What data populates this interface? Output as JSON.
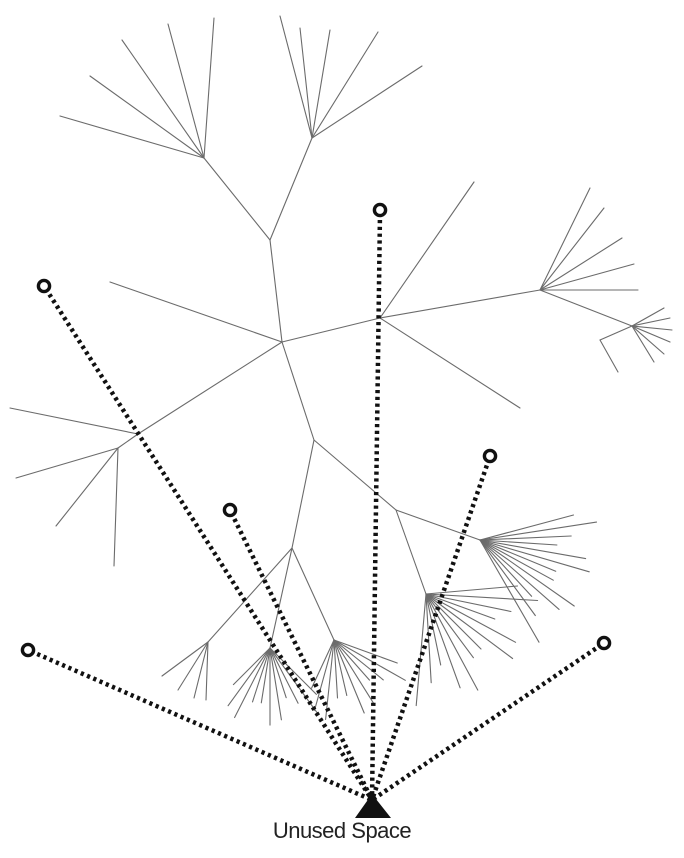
{
  "caption": "Unused Space",
  "colors": {
    "tree": "#6b6b6b",
    "rays": "#111111",
    "background": "#ffffff"
  },
  "icons": {
    "ray_endpoint": "ring-marker-icon",
    "origin": "triangle-apex-icon"
  }
}
